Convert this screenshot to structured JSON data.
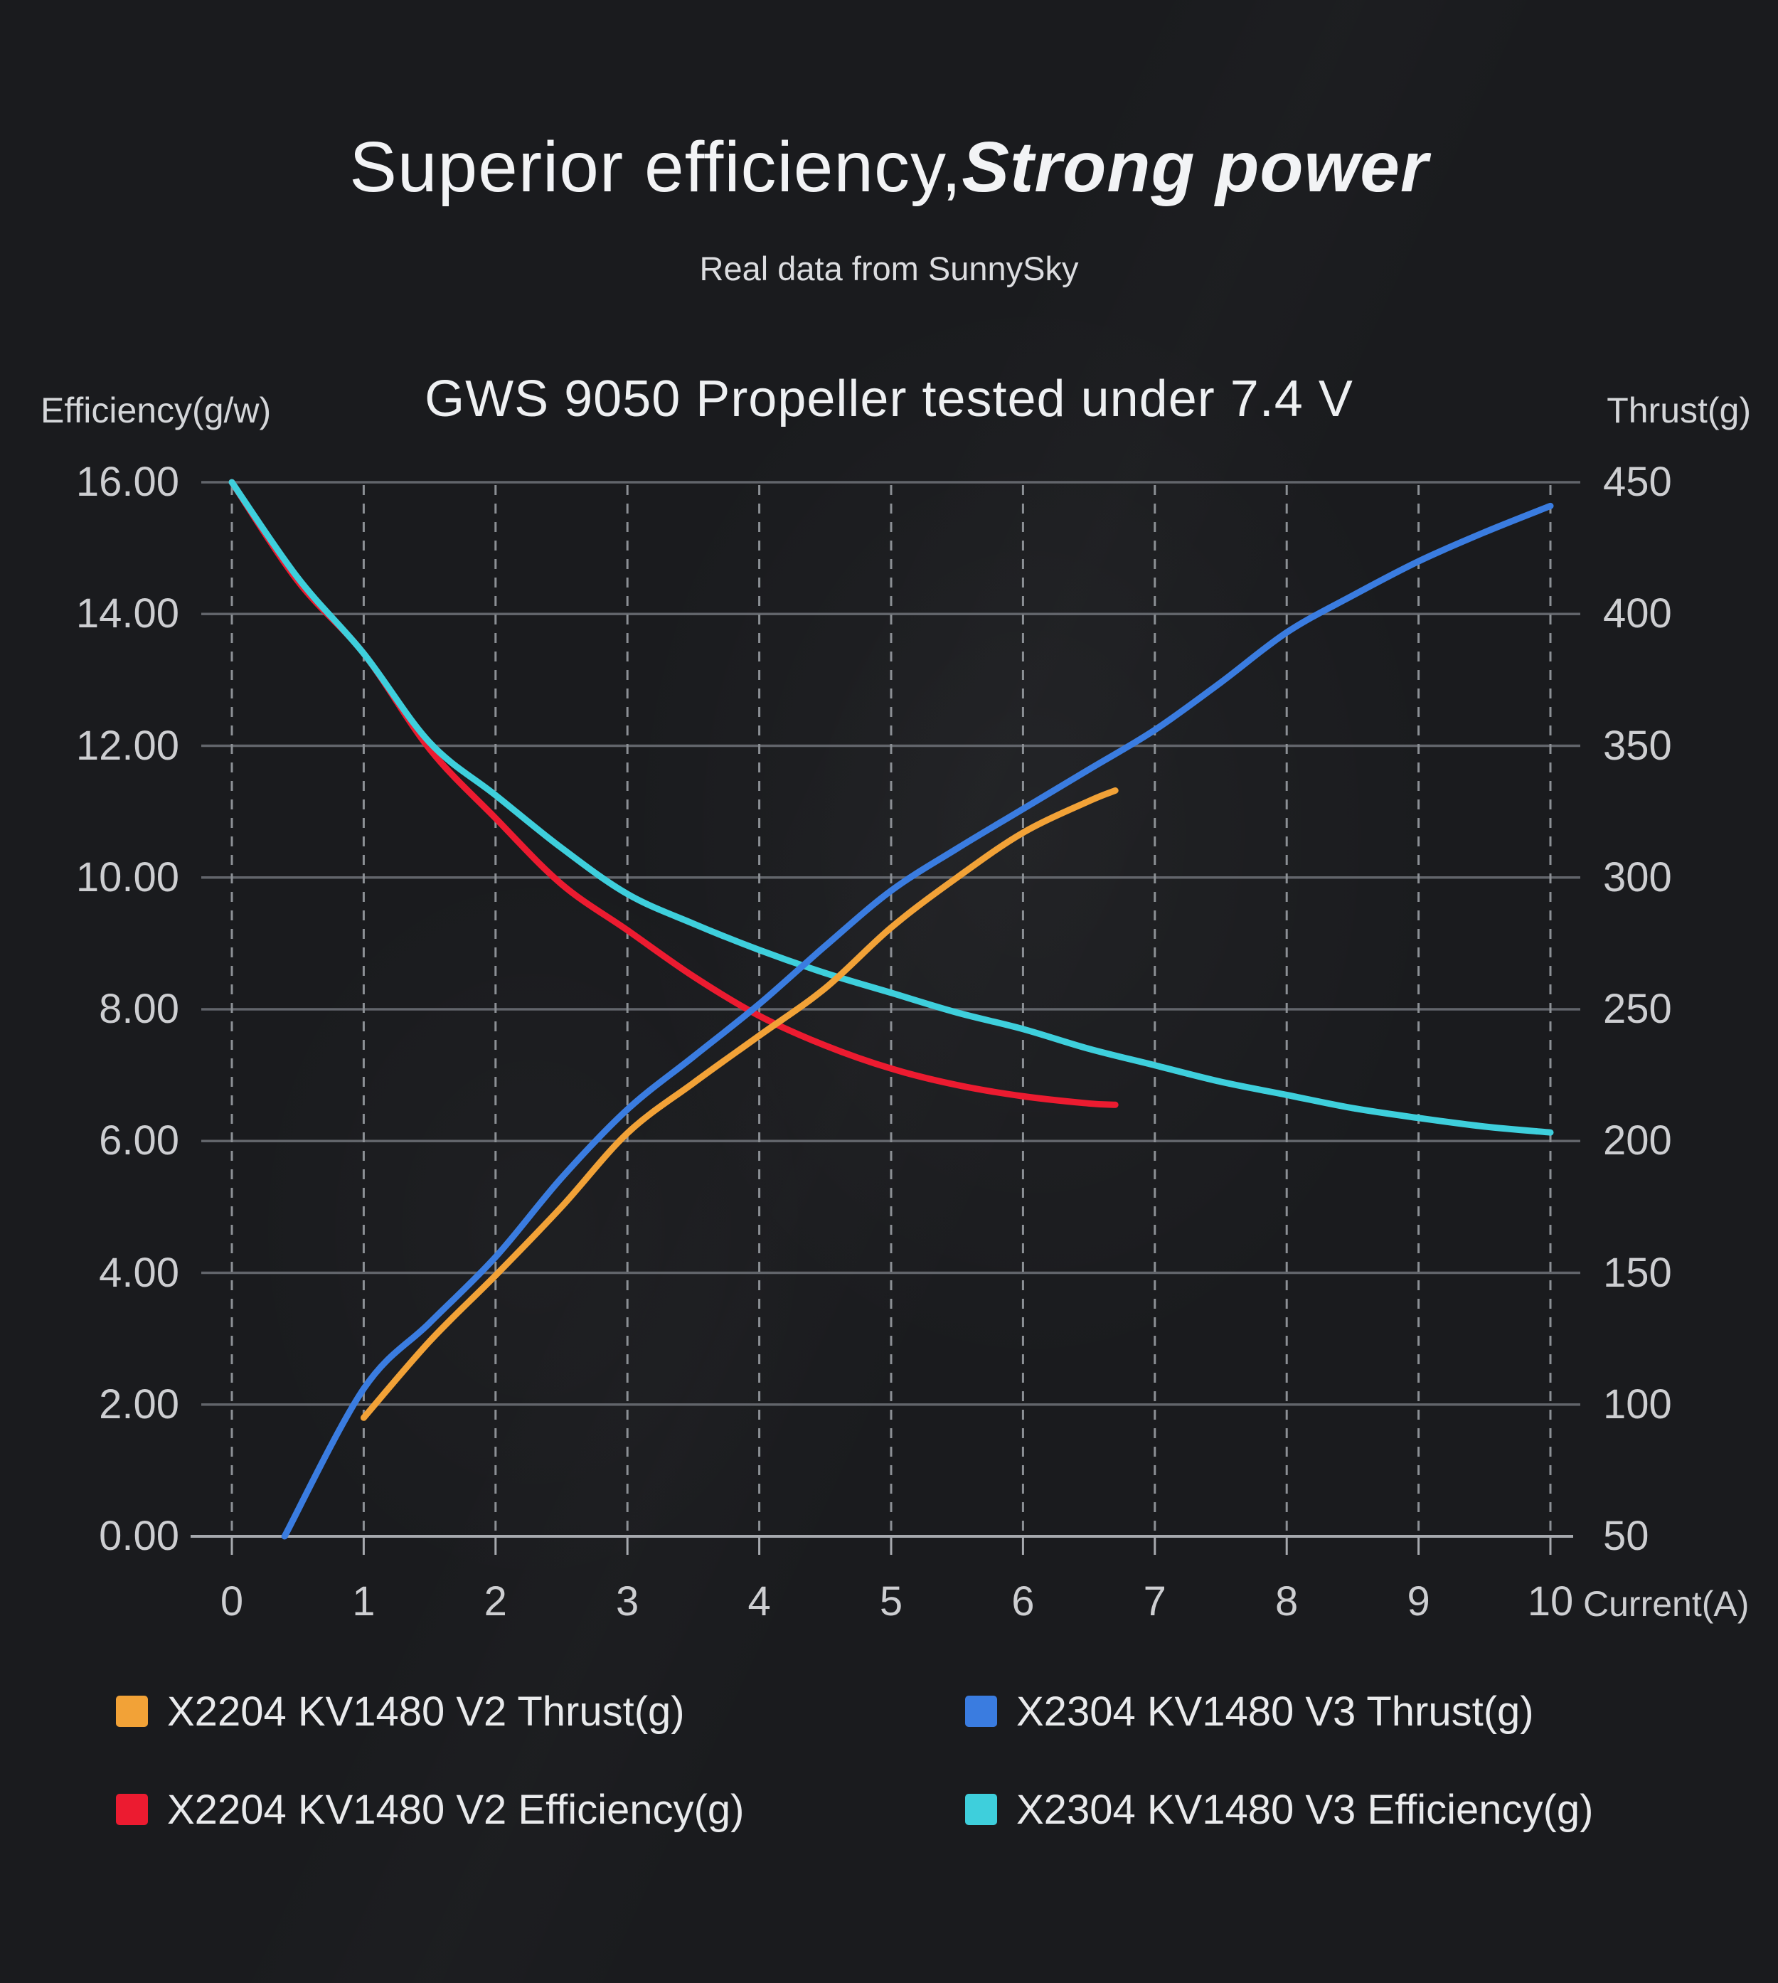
{
  "page": {
    "title_regular": "Superior efficiency,",
    "title_bold_italic": "Strong power",
    "subtitle": "Real data from SunnySky"
  },
  "chart_data": {
    "type": "line",
    "title": "GWS 9050 Propeller tested under 7.4 V",
    "grid": true,
    "legend_position": "bottom",
    "x_axis": {
      "label": "Current(A)",
      "min": 0,
      "max": 10,
      "tick_labels": [
        "0",
        "1",
        "2",
        "3",
        "4",
        "5",
        "6",
        "7",
        "8",
        "9",
        "10"
      ]
    },
    "left_axis": {
      "label": "Efficiency(g/w)",
      "min": 0,
      "max": 16,
      "tick_labels": [
        "16.00",
        "14.00",
        "12.00",
        "10.00",
        "8.00",
        "6.00",
        "4.00",
        "2.00",
        "0.00"
      ]
    },
    "right_axis": {
      "label": "Thrust(g)",
      "min": 50,
      "max": 450,
      "tick_labels": [
        "450",
        "400",
        "350",
        "300",
        "250",
        "200",
        "150",
        "100",
        "50"
      ]
    },
    "series": [
      {
        "name": "X2204 KV1480 V2 Thrust(g)",
        "axis": "right",
        "color": "#F2A237",
        "points": [
          [
            1,
            95
          ],
          [
            1.5,
            124
          ],
          [
            2,
            149
          ],
          [
            2.5,
            175
          ],
          [
            3,
            203
          ],
          [
            3.5,
            222
          ],
          [
            4,
            240
          ],
          [
            4.5,
            258
          ],
          [
            5,
            281
          ],
          [
            5.5,
            300
          ],
          [
            6,
            317
          ],
          [
            6.5,
            329
          ],
          [
            6.7,
            333
          ]
        ]
      },
      {
        "name": "X2304 KV1480 V3 Thrust(g)",
        "axis": "right",
        "color": "#3A7CE0",
        "points": [
          [
            0.4,
            50
          ],
          [
            1,
            106
          ],
          [
            1.5,
            131
          ],
          [
            2,
            156
          ],
          [
            2.5,
            186
          ],
          [
            3,
            212
          ],
          [
            3.5,
            232
          ],
          [
            4,
            252
          ],
          [
            4.5,
            274
          ],
          [
            5,
            295
          ],
          [
            5.5,
            311
          ],
          [
            6,
            326
          ],
          [
            6.5,
            341
          ],
          [
            7,
            356
          ],
          [
            7.5,
            374
          ],
          [
            8,
            393
          ],
          [
            8.5,
            407
          ],
          [
            9,
            420
          ],
          [
            9.5,
            431
          ],
          [
            10,
            441
          ]
        ]
      },
      {
        "name": "X2204 KV1480 V2 Efficiency(g)",
        "axis": "left",
        "color": "#EC1B30",
        "points": [
          [
            0,
            16.0
          ],
          [
            0.5,
            14.5
          ],
          [
            1,
            13.4
          ],
          [
            1.5,
            11.95
          ],
          [
            2,
            10.9
          ],
          [
            2.5,
            9.9
          ],
          [
            3,
            9.2
          ],
          [
            3.5,
            8.5
          ],
          [
            4,
            7.9
          ],
          [
            4.5,
            7.45
          ],
          [
            5,
            7.1
          ],
          [
            5.5,
            6.85
          ],
          [
            6,
            6.68
          ],
          [
            6.5,
            6.57
          ],
          [
            6.7,
            6.55
          ]
        ]
      },
      {
        "name": "X2304 KV1480 V3 Efficiency(g)",
        "axis": "left",
        "color": "#3ECFDC",
        "points": [
          [
            0,
            16.0
          ],
          [
            0.5,
            14.55
          ],
          [
            1,
            13.4
          ],
          [
            1.5,
            12.05
          ],
          [
            2,
            11.25
          ],
          [
            2.5,
            10.45
          ],
          [
            3,
            9.75
          ],
          [
            3.5,
            9.3
          ],
          [
            4,
            8.9
          ],
          [
            4.5,
            8.55
          ],
          [
            5,
            8.25
          ],
          [
            5.5,
            7.95
          ],
          [
            6,
            7.7
          ],
          [
            6.5,
            7.4
          ],
          [
            7,
            7.15
          ],
          [
            7.5,
            6.9
          ],
          [
            8,
            6.7
          ],
          [
            8.5,
            6.5
          ],
          [
            9,
            6.35
          ],
          [
            9.5,
            6.22
          ],
          [
            10,
            6.13
          ]
        ]
      }
    ],
    "colors": {
      "background": "#1A1B1E",
      "grid_horizontal": "#62656B",
      "grid_vertical_dashed": "#8C9095",
      "axis_baseline": "#A6A9AE",
      "title_text": "#F2F3F5",
      "tick_text": "#CDCED1"
    }
  }
}
